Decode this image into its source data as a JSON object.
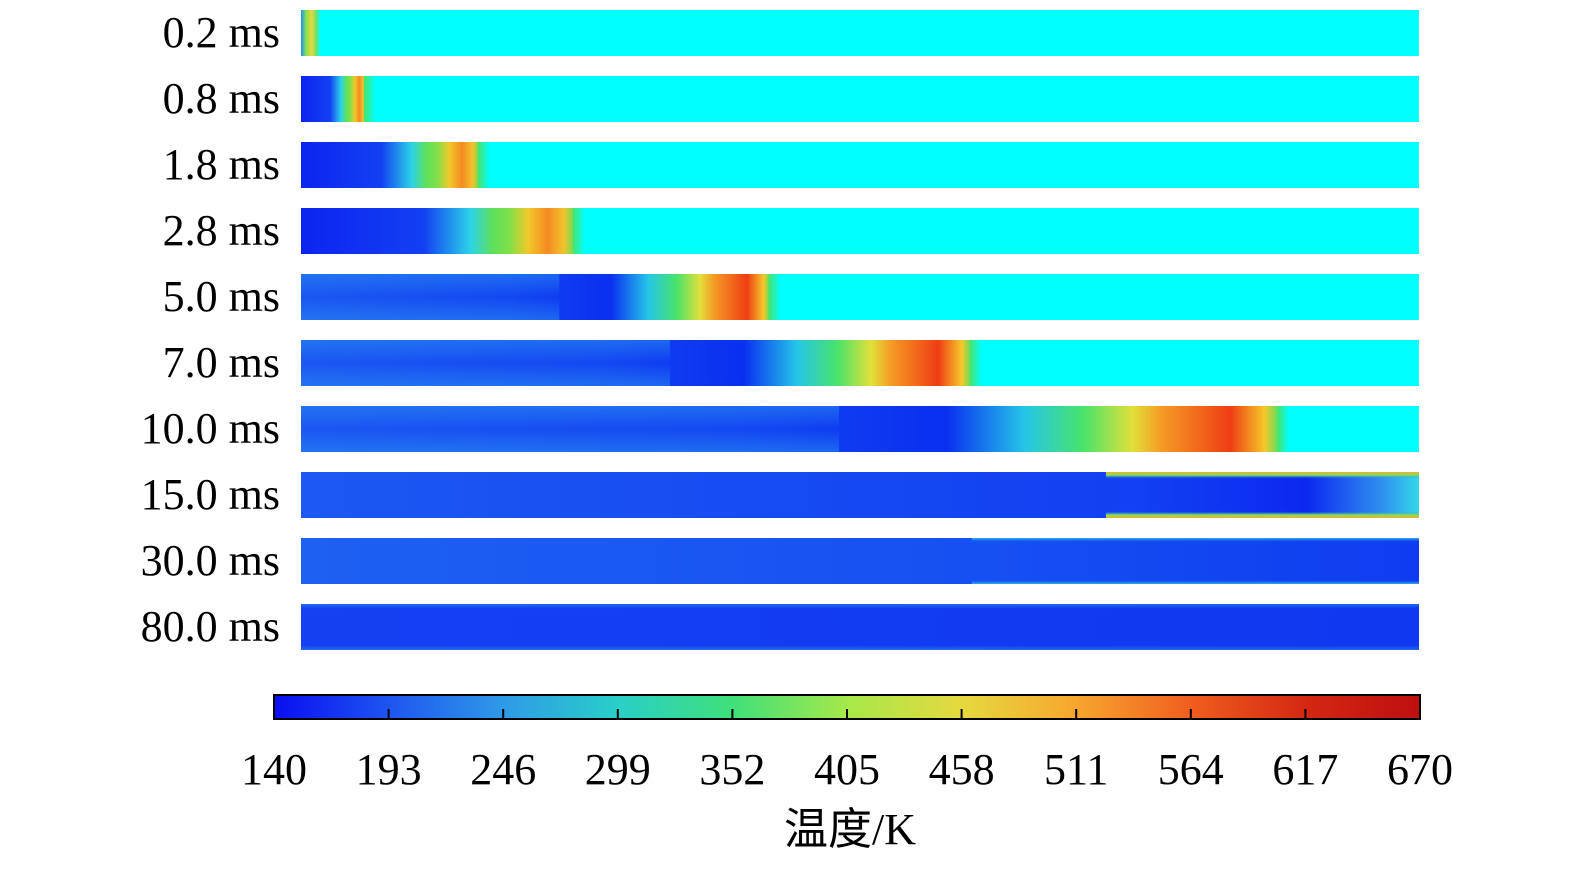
{
  "figure": {
    "rows": [
      {
        "label": "0.2 ms",
        "front": 0.01,
        "core": "none"
      },
      {
        "label": "0.8 ms",
        "front": 0.058,
        "core": "short"
      },
      {
        "label": "1.8 ms",
        "front": 0.16,
        "core": "short"
      },
      {
        "label": "2.8 ms",
        "front": 0.245,
        "core": "short"
      },
      {
        "label": "5.0 ms",
        "front": 0.42,
        "core": "jet"
      },
      {
        "label": "7.0 ms",
        "front": 0.6,
        "core": "jet"
      },
      {
        "label": "10.0 ms",
        "front": 0.875,
        "core": "jet"
      },
      {
        "label": "15.0 ms",
        "front": null,
        "core": "full_wall"
      },
      {
        "label": "30.0 ms",
        "front": null,
        "core": "filled"
      },
      {
        "label": "80.0 ms",
        "front": null,
        "core": "filled_cold"
      }
    ],
    "colorbar": {
      "title": "温度/K",
      "min": 140,
      "max": 670,
      "ticks": [
        "140",
        "193",
        "246",
        "299",
        "352",
        "405",
        "458",
        "511",
        "564",
        "617",
        "670"
      ],
      "colormap": [
        "#0a0ef0",
        "#1e55f0",
        "#2f9ae8",
        "#29cfc8",
        "#3fe07a",
        "#a6e84a",
        "#e6d93f",
        "#f7a62e",
        "#ef5e1e",
        "#d42812",
        "#bd0f0f"
      ]
    },
    "background_colour": "#00ffff",
    "cold_colour": "#1b4ff2"
  }
}
